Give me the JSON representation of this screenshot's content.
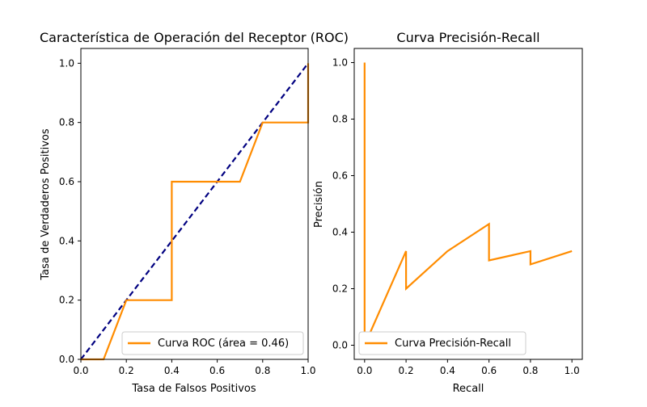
{
  "chart_data": [
    {
      "type": "line",
      "title": "Característica de Operación del Receptor (ROC)",
      "xlabel": "Tasa de Falsos Positivos",
      "ylabel": "Tasa de Verdaderos Positivos",
      "xlim": [
        0.0,
        1.0
      ],
      "ylim": [
        0.0,
        1.05
      ],
      "xticks": [
        "0.0",
        "0.2",
        "0.4",
        "0.6",
        "0.8",
        "1.0"
      ],
      "yticks": [
        "0.0",
        "0.2",
        "0.4",
        "0.6",
        "0.8",
        "1.0"
      ],
      "grid": false,
      "legend_position": "lower-right",
      "series": [
        {
          "name": "Curva ROC (área = 0.46)",
          "color": "#ff8c00",
          "x": [
            0.0,
            0.1,
            0.2,
            0.2,
            0.4,
            0.4,
            0.7,
            0.8,
            0.8,
            1.0,
            1.0
          ],
          "y": [
            0.0,
            0.0,
            0.2,
            0.2,
            0.2,
            0.6,
            0.6,
            0.8,
            0.8,
            0.8,
            1.0
          ]
        },
        {
          "color": "#000080",
          "dashed": true,
          "x": [
            0.0,
            1.0
          ],
          "y": [
            0.0,
            1.0
          ]
        }
      ]
    },
    {
      "type": "line",
      "title": "Curva Precisión-Recall",
      "xlabel": "Recall",
      "ylabel": "Precisión",
      "xlim": [
        -0.05,
        1.05
      ],
      "ylim": [
        -0.05,
        1.05
      ],
      "xticks": [
        "0.0",
        "0.2",
        "0.4",
        "0.6",
        "0.8",
        "1.0"
      ],
      "yticks": [
        "0.0",
        "0.2",
        "0.4",
        "0.6",
        "0.8",
        "1.0"
      ],
      "grid": false,
      "legend_position": "lower-left",
      "series": [
        {
          "name": "Curva Precisión-Recall",
          "color": "#ff8c00",
          "x": [
            0.0,
            0.0,
            0.2,
            0.2,
            0.4,
            0.6,
            0.6,
            0.8,
            0.8,
            1.0
          ],
          "y": [
            1.0,
            0.0,
            0.333,
            0.2,
            0.333,
            0.429,
            0.3,
            0.333,
            0.286,
            0.333
          ]
        }
      ]
    }
  ]
}
